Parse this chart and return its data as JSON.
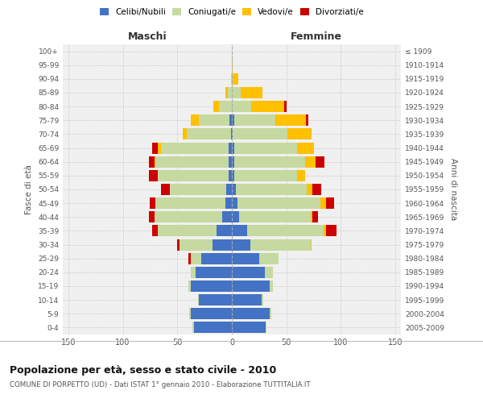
{
  "age_groups": [
    "0-4",
    "5-9",
    "10-14",
    "15-19",
    "20-24",
    "25-29",
    "30-34",
    "35-39",
    "40-44",
    "45-49",
    "50-54",
    "55-59",
    "60-64",
    "65-69",
    "70-74",
    "75-79",
    "80-84",
    "85-89",
    "90-94",
    "95-99",
    "100+"
  ],
  "birth_years": [
    "2005-2009",
    "2000-2004",
    "1995-1999",
    "1990-1994",
    "1985-1989",
    "1980-1984",
    "1975-1979",
    "1970-1974",
    "1965-1969",
    "1960-1964",
    "1955-1959",
    "1950-1954",
    "1945-1949",
    "1940-1944",
    "1935-1939",
    "1930-1934",
    "1925-1929",
    "1920-1924",
    "1915-1919",
    "1910-1914",
    "≤ 1909"
  ],
  "male": {
    "celibi": [
      35,
      38,
      30,
      38,
      33,
      28,
      18,
      14,
      9,
      6,
      5,
      3,
      3,
      3,
      1,
      2,
      0,
      0,
      0,
      0,
      0
    ],
    "coniugati": [
      1,
      1,
      1,
      2,
      5,
      10,
      30,
      54,
      62,
      64,
      52,
      65,
      67,
      62,
      40,
      28,
      12,
      4,
      1,
      0,
      0
    ],
    "vedovi": [
      0,
      0,
      0,
      0,
      0,
      0,
      0,
      0,
      0,
      0,
      0,
      0,
      1,
      3,
      4,
      8,
      5,
      2,
      0,
      0,
      0
    ],
    "divorziati": [
      0,
      0,
      0,
      0,
      0,
      2,
      2,
      5,
      5,
      5,
      8,
      8,
      5,
      5,
      0,
      0,
      0,
      0,
      0,
      0,
      0
    ]
  },
  "female": {
    "nubili": [
      31,
      35,
      27,
      35,
      30,
      25,
      17,
      14,
      7,
      5,
      4,
      2,
      2,
      2,
      1,
      2,
      0,
      0,
      0,
      0,
      0
    ],
    "coniugate": [
      1,
      1,
      2,
      3,
      8,
      18,
      55,
      70,
      65,
      76,
      65,
      58,
      65,
      58,
      50,
      38,
      18,
      8,
      1,
      0,
      0
    ],
    "vedove": [
      0,
      0,
      0,
      0,
      0,
      0,
      1,
      2,
      2,
      5,
      5,
      7,
      10,
      15,
      22,
      28,
      30,
      20,
      5,
      1,
      0
    ],
    "divorziate": [
      0,
      0,
      0,
      0,
      0,
      0,
      0,
      10,
      5,
      8,
      8,
      0,
      8,
      0,
      0,
      2,
      2,
      0,
      0,
      0,
      0
    ]
  },
  "colors": {
    "celibi": "#4472c4",
    "coniugati": "#c5d9a0",
    "vedovi": "#ffc000",
    "divorziati": "#cc0000"
  },
  "xlim": 155,
  "title": "Popolazione per età, sesso e stato civile - 2010",
  "subtitle": "COMUNE DI PORPETTO (UD) - Dati ISTAT 1° gennaio 2010 - Elaborazione TUTTITALIA.IT",
  "legend_labels": [
    "Celibi/Nubili",
    "Coniugati/e",
    "Vedovi/e",
    "Divorziati/e"
  ],
  "ylabel_left": "Fasce di età",
  "ylabel_right": "Anni di nascita",
  "xlabel_left": "Maschi",
  "xlabel_right": "Femmine",
  "bg_color": "#f0f0f0",
  "grid_color": "#cccccc"
}
